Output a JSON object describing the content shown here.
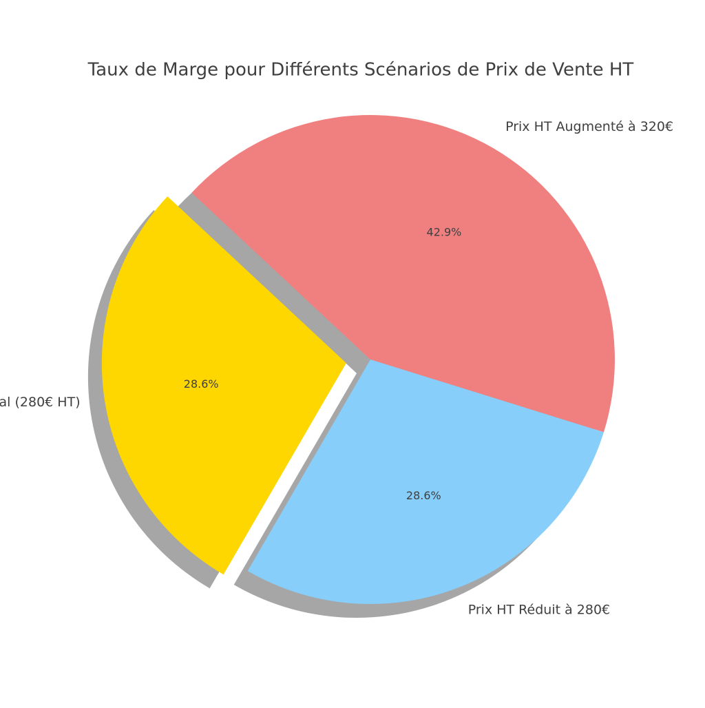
{
  "chart_data": {
    "type": "pie",
    "title": "Taux de Marge pour Différents Scénarios de Prix de Vente HT",
    "categories": [
      "Prix HT Augmenté à 320€",
      "Prix HT Réduit à 280€",
      "al (280€ HT)"
    ],
    "values": [
      42.9,
      28.6,
      28.6
    ],
    "value_labels": [
      "42.9%",
      "28.6%",
      "28.6%"
    ],
    "colors": [
      "#f08080",
      "#87cefa",
      "#ffd700"
    ],
    "explode": [
      0,
      0,
      0.1
    ],
    "shadow": true
  }
}
